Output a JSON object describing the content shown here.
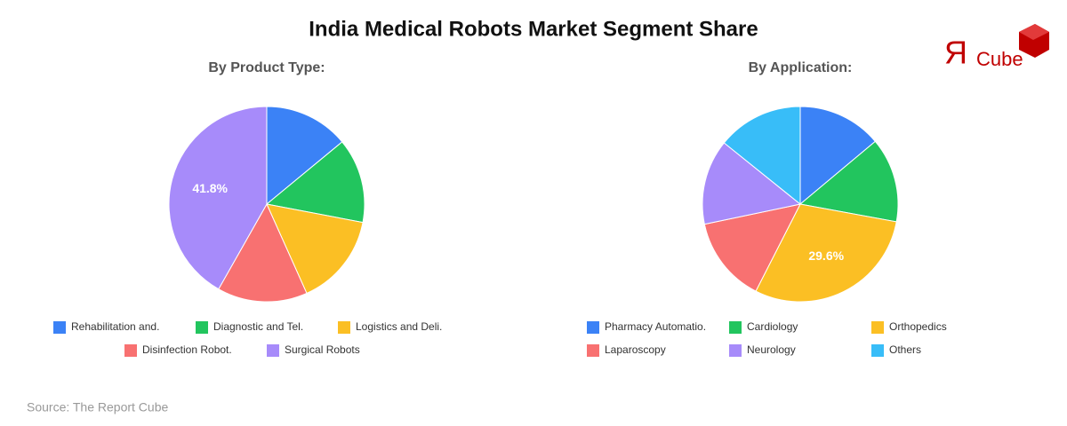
{
  "title": "India Medical Robots Market Segment Share",
  "logo": {
    "mark": "Я",
    "text": "Cube"
  },
  "source": "Source: The Report Cube",
  "chart_data": [
    {
      "type": "pie",
      "title": "By Product Type:",
      "categories": [
        "Rehabilitation and.",
        "Diagnostic and Tel.",
        "Logistics and Deli.",
        "Disinfection Robot.",
        "Surgical Robots"
      ],
      "values": [
        14,
        14,
        15.3,
        14.9,
        41.8
      ],
      "value_labels": [
        null,
        null,
        null,
        null,
        "41.8%"
      ],
      "colors": [
        "#3b82f6",
        "#22c55e",
        "#fbbf24",
        "#f87171",
        "#a78bfa"
      ]
    },
    {
      "type": "pie",
      "title": "By Application:",
      "categories": [
        "Pharmacy Automatio.",
        "Cardiology",
        "Orthopedics",
        "Laparoscopy",
        "Neurology",
        "Others"
      ],
      "values": [
        13.9,
        14,
        29.6,
        14.2,
        14.1,
        14.2
      ],
      "value_labels": [
        null,
        null,
        "29.6%",
        null,
        null,
        null
      ],
      "colors": [
        "#3b82f6",
        "#22c55e",
        "#fbbf24",
        "#f87171",
        "#a78bfa",
        "#38bdf8"
      ]
    }
  ]
}
